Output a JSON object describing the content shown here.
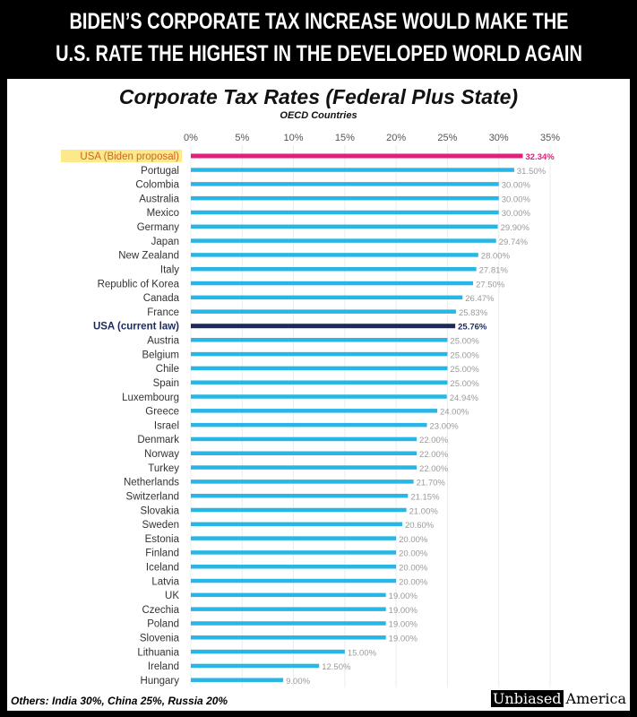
{
  "headline": [
    "BIDEN’S CORPORATE TAX INCREASE WOULD MAKE THE",
    "U.S. RATE THE HIGHEST IN THE DEVELOPED WORLD AGAIN"
  ],
  "footer_note": "Others: India 30%, China 25%, Russia 20%",
  "logo": {
    "part1": "Unbiased",
    "part2": "America"
  },
  "colors": {
    "default_bar": "#27b6e6",
    "biden_bar": "#e0207a",
    "current_law_bar": "#1b2a5c",
    "highlight_bg": "#fbe98a",
    "value_label": "#9a9a9a"
  },
  "chart_data": {
    "type": "bar",
    "orientation": "horizontal",
    "title": "Corporate Tax Rates (Federal Plus State)",
    "subtitle": "OECD Countries",
    "xlim": [
      0,
      35
    ],
    "xticks": [
      "0%",
      "5%",
      "10%",
      "15%",
      "20%",
      "25%",
      "30%",
      "35%"
    ],
    "grid": true,
    "categories": [
      "USA (Biden proposal)",
      "Portugal",
      "Colombia",
      "Australia",
      "Mexico",
      "Germany",
      "Japan",
      "New Zealand",
      "Italy",
      "Republic of Korea",
      "Canada",
      "France",
      "USA (current law)",
      "Austria",
      "Belgium",
      "Chile",
      "Spain",
      "Luxembourg",
      "Greece",
      "Israel",
      "Denmark",
      "Norway",
      "Turkey",
      "Netherlands",
      "Switzerland",
      "Slovakia",
      "Sweden",
      "Estonia",
      "Finland",
      "Iceland",
      "Latvia",
      "UK",
      "Czechia",
      "Poland",
      "Slovenia",
      "Lithuania",
      "Ireland",
      "Hungary"
    ],
    "values": [
      32.34,
      31.5,
      30,
      30,
      30,
      29.9,
      29.74,
      28,
      27.81,
      27.5,
      26.47,
      25.83,
      25.76,
      25,
      25,
      25,
      25,
      24.94,
      24,
      23,
      22,
      22,
      22,
      21.7,
      21.15,
      21,
      20.6,
      20,
      20,
      20,
      20,
      19,
      19,
      19,
      19,
      15,
      12.5,
      9
    ],
    "data_labels": [
      "32.34%",
      "31.50%",
      "30.00%",
      "30.00%",
      "30.00%",
      "29.90%",
      "29.74%",
      "28.00%",
      "27.81%",
      "27.50%",
      "26.47%",
      "25.83%",
      "25.76%",
      "25.00%",
      "25.00%",
      "25.00%",
      "25.00%",
      "24.94%",
      "24.00%",
      "23.00%",
      "22.00%",
      "22.00%",
      "22.00%",
      "21.70%",
      "21.15%",
      "21.00%",
      "20.60%",
      "20.00%",
      "20.00%",
      "20.00%",
      "20.00%",
      "19.00%",
      "19.00%",
      "19.00%",
      "19.00%",
      "15.00%",
      "12.50%",
      "9.00%"
    ],
    "highlighted": {
      "USA (Biden proposal)": "biden",
      "USA (current law)": "current"
    }
  }
}
